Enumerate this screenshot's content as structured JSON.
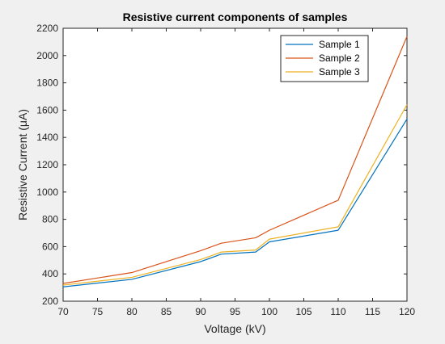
{
  "chart_data": {
    "type": "line",
    "title": "Resistive current components of samples",
    "xlabel": "Voltage (kV)",
    "ylabel": "Resistive Current (μA)",
    "xlim": [
      70,
      120
    ],
    "ylim": [
      200,
      2200
    ],
    "x_ticks": [
      70,
      75,
      80,
      85,
      90,
      95,
      100,
      105,
      110,
      115,
      120
    ],
    "y_ticks": [
      200,
      400,
      600,
      800,
      1000,
      1200,
      1400,
      1600,
      1800,
      2000,
      2200
    ],
    "grid": false,
    "legend_position": "top-right",
    "series": [
      {
        "name": "Sample 1",
        "color": "#0072BD",
        "x": [
          70,
          80,
          90,
          93,
          98,
          100,
          110,
          120
        ],
        "y": [
          305,
          360,
          490,
          545,
          560,
          635,
          720,
          1535
        ]
      },
      {
        "name": "Sample 2",
        "color": "#D95319",
        "x": [
          70,
          80,
          90,
          93,
          98,
          100,
          110,
          120
        ],
        "y": [
          330,
          410,
          570,
          625,
          665,
          720,
          940,
          2140
        ]
      },
      {
        "name": "Sample 3",
        "color": "#EDB120",
        "x": [
          70,
          80,
          90,
          93,
          98,
          100,
          110,
          120
        ],
        "y": [
          318,
          375,
          505,
          560,
          575,
          655,
          745,
          1640
        ]
      }
    ]
  }
}
